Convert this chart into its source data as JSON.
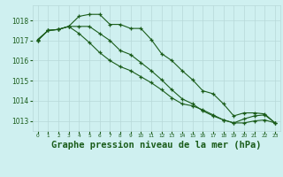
{
  "x": [
    0,
    1,
    2,
    3,
    4,
    5,
    6,
    7,
    8,
    9,
    10,
    11,
    12,
    13,
    14,
    15,
    16,
    17,
    18,
    19,
    20,
    21,
    22,
    23
  ],
  "line1": [
    1017.0,
    1017.5,
    1017.55,
    1017.7,
    1018.2,
    1018.3,
    1018.3,
    1017.8,
    1017.8,
    1017.6,
    1017.6,
    1017.05,
    1016.35,
    1016.0,
    1015.5,
    1015.05,
    1014.5,
    1014.35,
    1013.85,
    1013.25,
    1013.4,
    1013.4,
    1013.35,
    1012.9
  ],
  "line2": [
    1017.05,
    1017.5,
    1017.55,
    1017.7,
    1017.7,
    1017.7,
    1017.35,
    1017.0,
    1016.5,
    1016.3,
    1015.9,
    1015.5,
    1015.05,
    1014.55,
    1014.1,
    1013.85,
    1013.5,
    1013.25,
    1013.05,
    1012.9,
    1013.1,
    1013.25,
    1013.3,
    1012.9
  ],
  "line3": [
    1017.0,
    1017.5,
    1017.55,
    1017.7,
    1017.35,
    1016.9,
    1016.4,
    1016.0,
    1015.7,
    1015.5,
    1015.2,
    1014.9,
    1014.55,
    1014.15,
    1013.85,
    1013.75,
    1013.55,
    1013.3,
    1013.05,
    1012.9,
    1012.9,
    1013.0,
    1013.05,
    1012.9
  ],
  "bg_color": "#cff0f0",
  "grid_color": "#b8d8d8",
  "line_color": "#1a5c1a",
  "title": "Graphe pression niveau de la mer (hPa)",
  "ylim_min": 1012.5,
  "ylim_max": 1018.75,
  "yticks": [
    1013,
    1014,
    1015,
    1016,
    1017,
    1018
  ]
}
